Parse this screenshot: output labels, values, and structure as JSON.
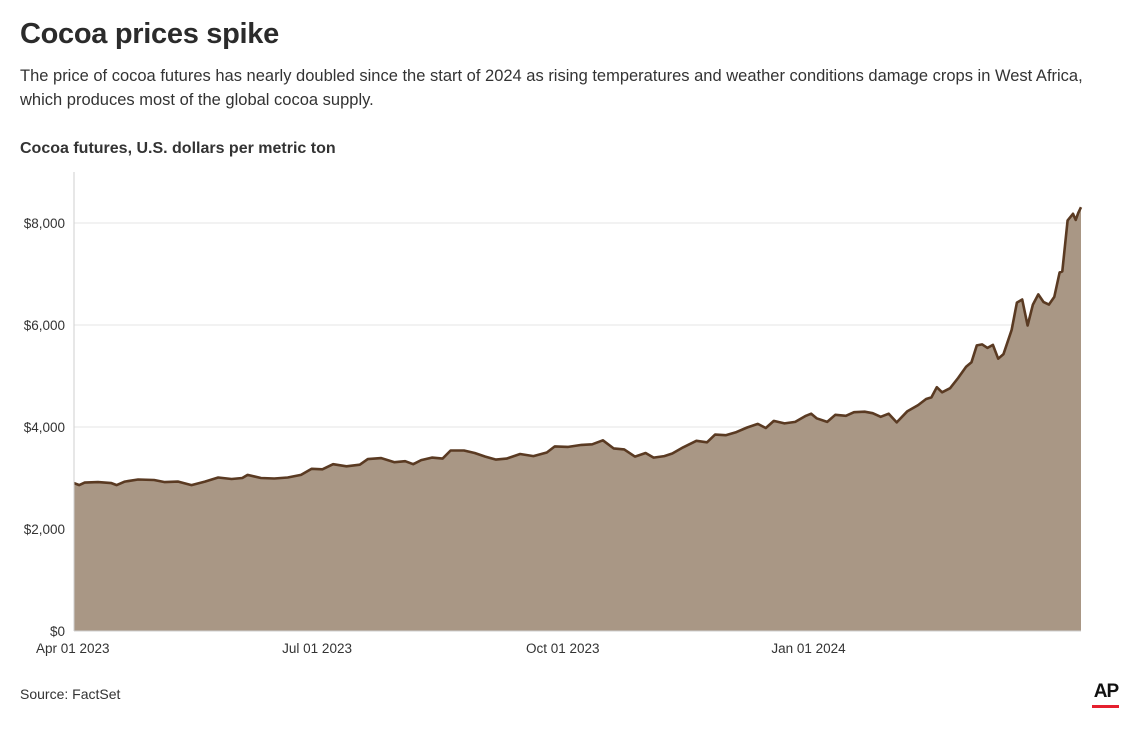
{
  "header": {
    "title": "Cocoa prices spike",
    "subtitle": "The price of cocoa futures has nearly doubled since the start of 2024 as rising temperatures and weather conditions damage crops in West Africa, which produces most of the global cocoa supply.",
    "chart_label": "Cocoa futures, U.S. dollars per metric ton"
  },
  "footer": {
    "source": "Source: FactSet",
    "logo": "AP"
  },
  "colors": {
    "line": "#5a3a22",
    "fill": "#a99785",
    "grid": "#e6e6e6",
    "logo_bar": "#e5202e"
  },
  "chart_data": {
    "type": "area",
    "title": "Cocoa futures, U.S. dollars per metric ton",
    "xlabel": "",
    "ylabel": "",
    "x_range": [
      "2023-04-01",
      "2024-03-28"
    ],
    "ylim": [
      0,
      9000
    ],
    "y_ticks": [
      0,
      2000,
      4000,
      6000,
      8000
    ],
    "y_tick_labels": [
      "$0",
      "$2,000",
      "$4,000",
      "$6,000",
      "$8,000"
    ],
    "x_ticks": [
      "2023-04-01",
      "2023-07-01",
      "2023-10-01",
      "2024-01-01"
    ],
    "x_tick_labels": [
      "Apr 01 2023",
      "Jul 01 2023",
      "Oct 01 2023",
      "Jan 01 2024"
    ],
    "grid": true,
    "series": [
      {
        "name": "Cocoa futures",
        "points": [
          [
            "2023-04-01",
            2900
          ],
          [
            "2023-04-03",
            2860
          ],
          [
            "2023-04-05",
            2910
          ],
          [
            "2023-04-10",
            2920
          ],
          [
            "2023-04-15",
            2900
          ],
          [
            "2023-04-17",
            2860
          ],
          [
            "2023-04-20",
            2930
          ],
          [
            "2023-04-25",
            2970
          ],
          [
            "2023-05-01",
            2960
          ],
          [
            "2023-05-05",
            2920
          ],
          [
            "2023-05-10",
            2930
          ],
          [
            "2023-05-15",
            2860
          ],
          [
            "2023-05-20",
            2930
          ],
          [
            "2023-05-25",
            3010
          ],
          [
            "2023-05-30",
            2980
          ],
          [
            "2023-06-03",
            3000
          ],
          [
            "2023-06-05",
            3060
          ],
          [
            "2023-06-10",
            3000
          ],
          [
            "2023-06-15",
            2990
          ],
          [
            "2023-06-20",
            3010
          ],
          [
            "2023-06-25",
            3060
          ],
          [
            "2023-06-29",
            3180
          ],
          [
            "2023-07-03",
            3170
          ],
          [
            "2023-07-07",
            3270
          ],
          [
            "2023-07-12",
            3230
          ],
          [
            "2023-07-17",
            3260
          ],
          [
            "2023-07-20",
            3370
          ],
          [
            "2023-07-25",
            3390
          ],
          [
            "2023-07-30",
            3310
          ],
          [
            "2023-08-03",
            3330
          ],
          [
            "2023-08-06",
            3270
          ],
          [
            "2023-08-09",
            3350
          ],
          [
            "2023-08-13",
            3400
          ],
          [
            "2023-08-17",
            3380
          ],
          [
            "2023-08-20",
            3540
          ],
          [
            "2023-08-25",
            3540
          ],
          [
            "2023-08-29",
            3490
          ],
          [
            "2023-09-02",
            3420
          ],
          [
            "2023-09-06",
            3360
          ],
          [
            "2023-09-10",
            3380
          ],
          [
            "2023-09-15",
            3470
          ],
          [
            "2023-09-20",
            3430
          ],
          [
            "2023-09-25",
            3500
          ],
          [
            "2023-09-28",
            3620
          ],
          [
            "2023-10-03",
            3610
          ],
          [
            "2023-10-08",
            3650
          ],
          [
            "2023-10-12",
            3660
          ],
          [
            "2023-10-16",
            3740
          ],
          [
            "2023-10-20",
            3580
          ],
          [
            "2023-10-24",
            3560
          ],
          [
            "2023-10-28",
            3420
          ],
          [
            "2023-11-01",
            3490
          ],
          [
            "2023-11-04",
            3400
          ],
          [
            "2023-11-08",
            3430
          ],
          [
            "2023-11-11",
            3480
          ],
          [
            "2023-11-15",
            3600
          ],
          [
            "2023-11-20",
            3730
          ],
          [
            "2023-11-24",
            3700
          ],
          [
            "2023-11-27",
            3850
          ],
          [
            "2023-12-01",
            3840
          ],
          [
            "2023-12-05",
            3900
          ],
          [
            "2023-12-09",
            3990
          ],
          [
            "2023-12-13",
            4060
          ],
          [
            "2023-12-16",
            3980
          ],
          [
            "2023-12-19",
            4120
          ],
          [
            "2023-12-23",
            4070
          ],
          [
            "2023-12-27",
            4100
          ],
          [
            "2023-12-31",
            4220
          ],
          [
            "2024-01-02",
            4260
          ],
          [
            "2024-01-04",
            4170
          ],
          [
            "2024-01-08",
            4100
          ],
          [
            "2024-01-11",
            4240
          ],
          [
            "2024-01-15",
            4220
          ],
          [
            "2024-01-18",
            4290
          ],
          [
            "2024-01-22",
            4300
          ],
          [
            "2024-01-25",
            4270
          ],
          [
            "2024-01-28",
            4200
          ],
          [
            "2024-01-31",
            4260
          ],
          [
            "2024-02-03",
            4090
          ],
          [
            "2024-02-07",
            4310
          ],
          [
            "2024-02-11",
            4430
          ],
          [
            "2024-02-14",
            4550
          ],
          [
            "2024-02-16",
            4580
          ],
          [
            "2024-02-18",
            4780
          ],
          [
            "2024-02-20",
            4680
          ],
          [
            "2024-02-23",
            4760
          ],
          [
            "2024-02-26",
            4960
          ],
          [
            "2024-02-29",
            5180
          ],
          [
            "2024-03-02",
            5270
          ],
          [
            "2024-03-04",
            5600
          ],
          [
            "2024-03-06",
            5620
          ],
          [
            "2024-03-08",
            5550
          ],
          [
            "2024-03-10",
            5610
          ],
          [
            "2024-03-12",
            5340
          ],
          [
            "2024-03-14",
            5430
          ],
          [
            "2024-03-17",
            5900
          ],
          [
            "2024-03-19",
            6440
          ],
          [
            "2024-03-21",
            6500
          ],
          [
            "2024-03-23",
            5990
          ],
          [
            "2024-03-25",
            6400
          ],
          [
            "2024-03-27",
            6600
          ],
          [
            "2024-03-29",
            6450
          ],
          [
            "2024-03-31",
            6400
          ],
          [
            "2024-04-02",
            6550
          ],
          [
            "2024-04-04",
            7030
          ],
          [
            "2024-04-05",
            7050
          ],
          [
            "2024-04-07",
            8050
          ],
          [
            "2024-04-09",
            8180
          ],
          [
            "2024-04-10",
            8060
          ],
          [
            "2024-04-11",
            8200
          ],
          [
            "2024-04-12",
            8310
          ]
        ]
      }
    ]
  }
}
